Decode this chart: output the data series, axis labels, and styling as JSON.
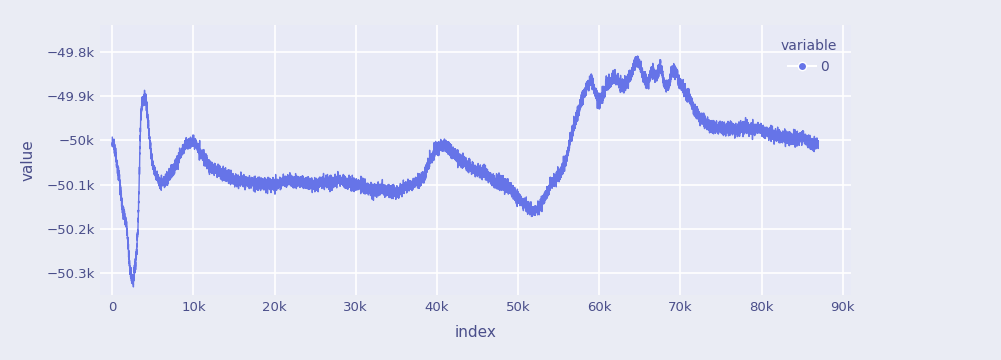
{
  "n_points": 87000,
  "xlim": [
    -1500,
    91000
  ],
  "ylim": [
    -50350,
    -49740
  ],
  "xlabel": "index",
  "ylabel": "value",
  "legend_title": "variable",
  "legend_label": "0",
  "line_color": "#6674e8",
  "bg_color": "#e8eaf6",
  "fig_bg_color": "#eaecf4",
  "grid_color": "#ffffff",
  "text_color": "#4a4e8a",
  "seed": 42,
  "yticks": [
    -50300,
    -50200,
    -50100,
    -50000,
    -49900,
    -49800
  ],
  "xticks": [
    0,
    10000,
    20000,
    30000,
    40000,
    50000,
    60000,
    70000,
    80000,
    90000
  ]
}
